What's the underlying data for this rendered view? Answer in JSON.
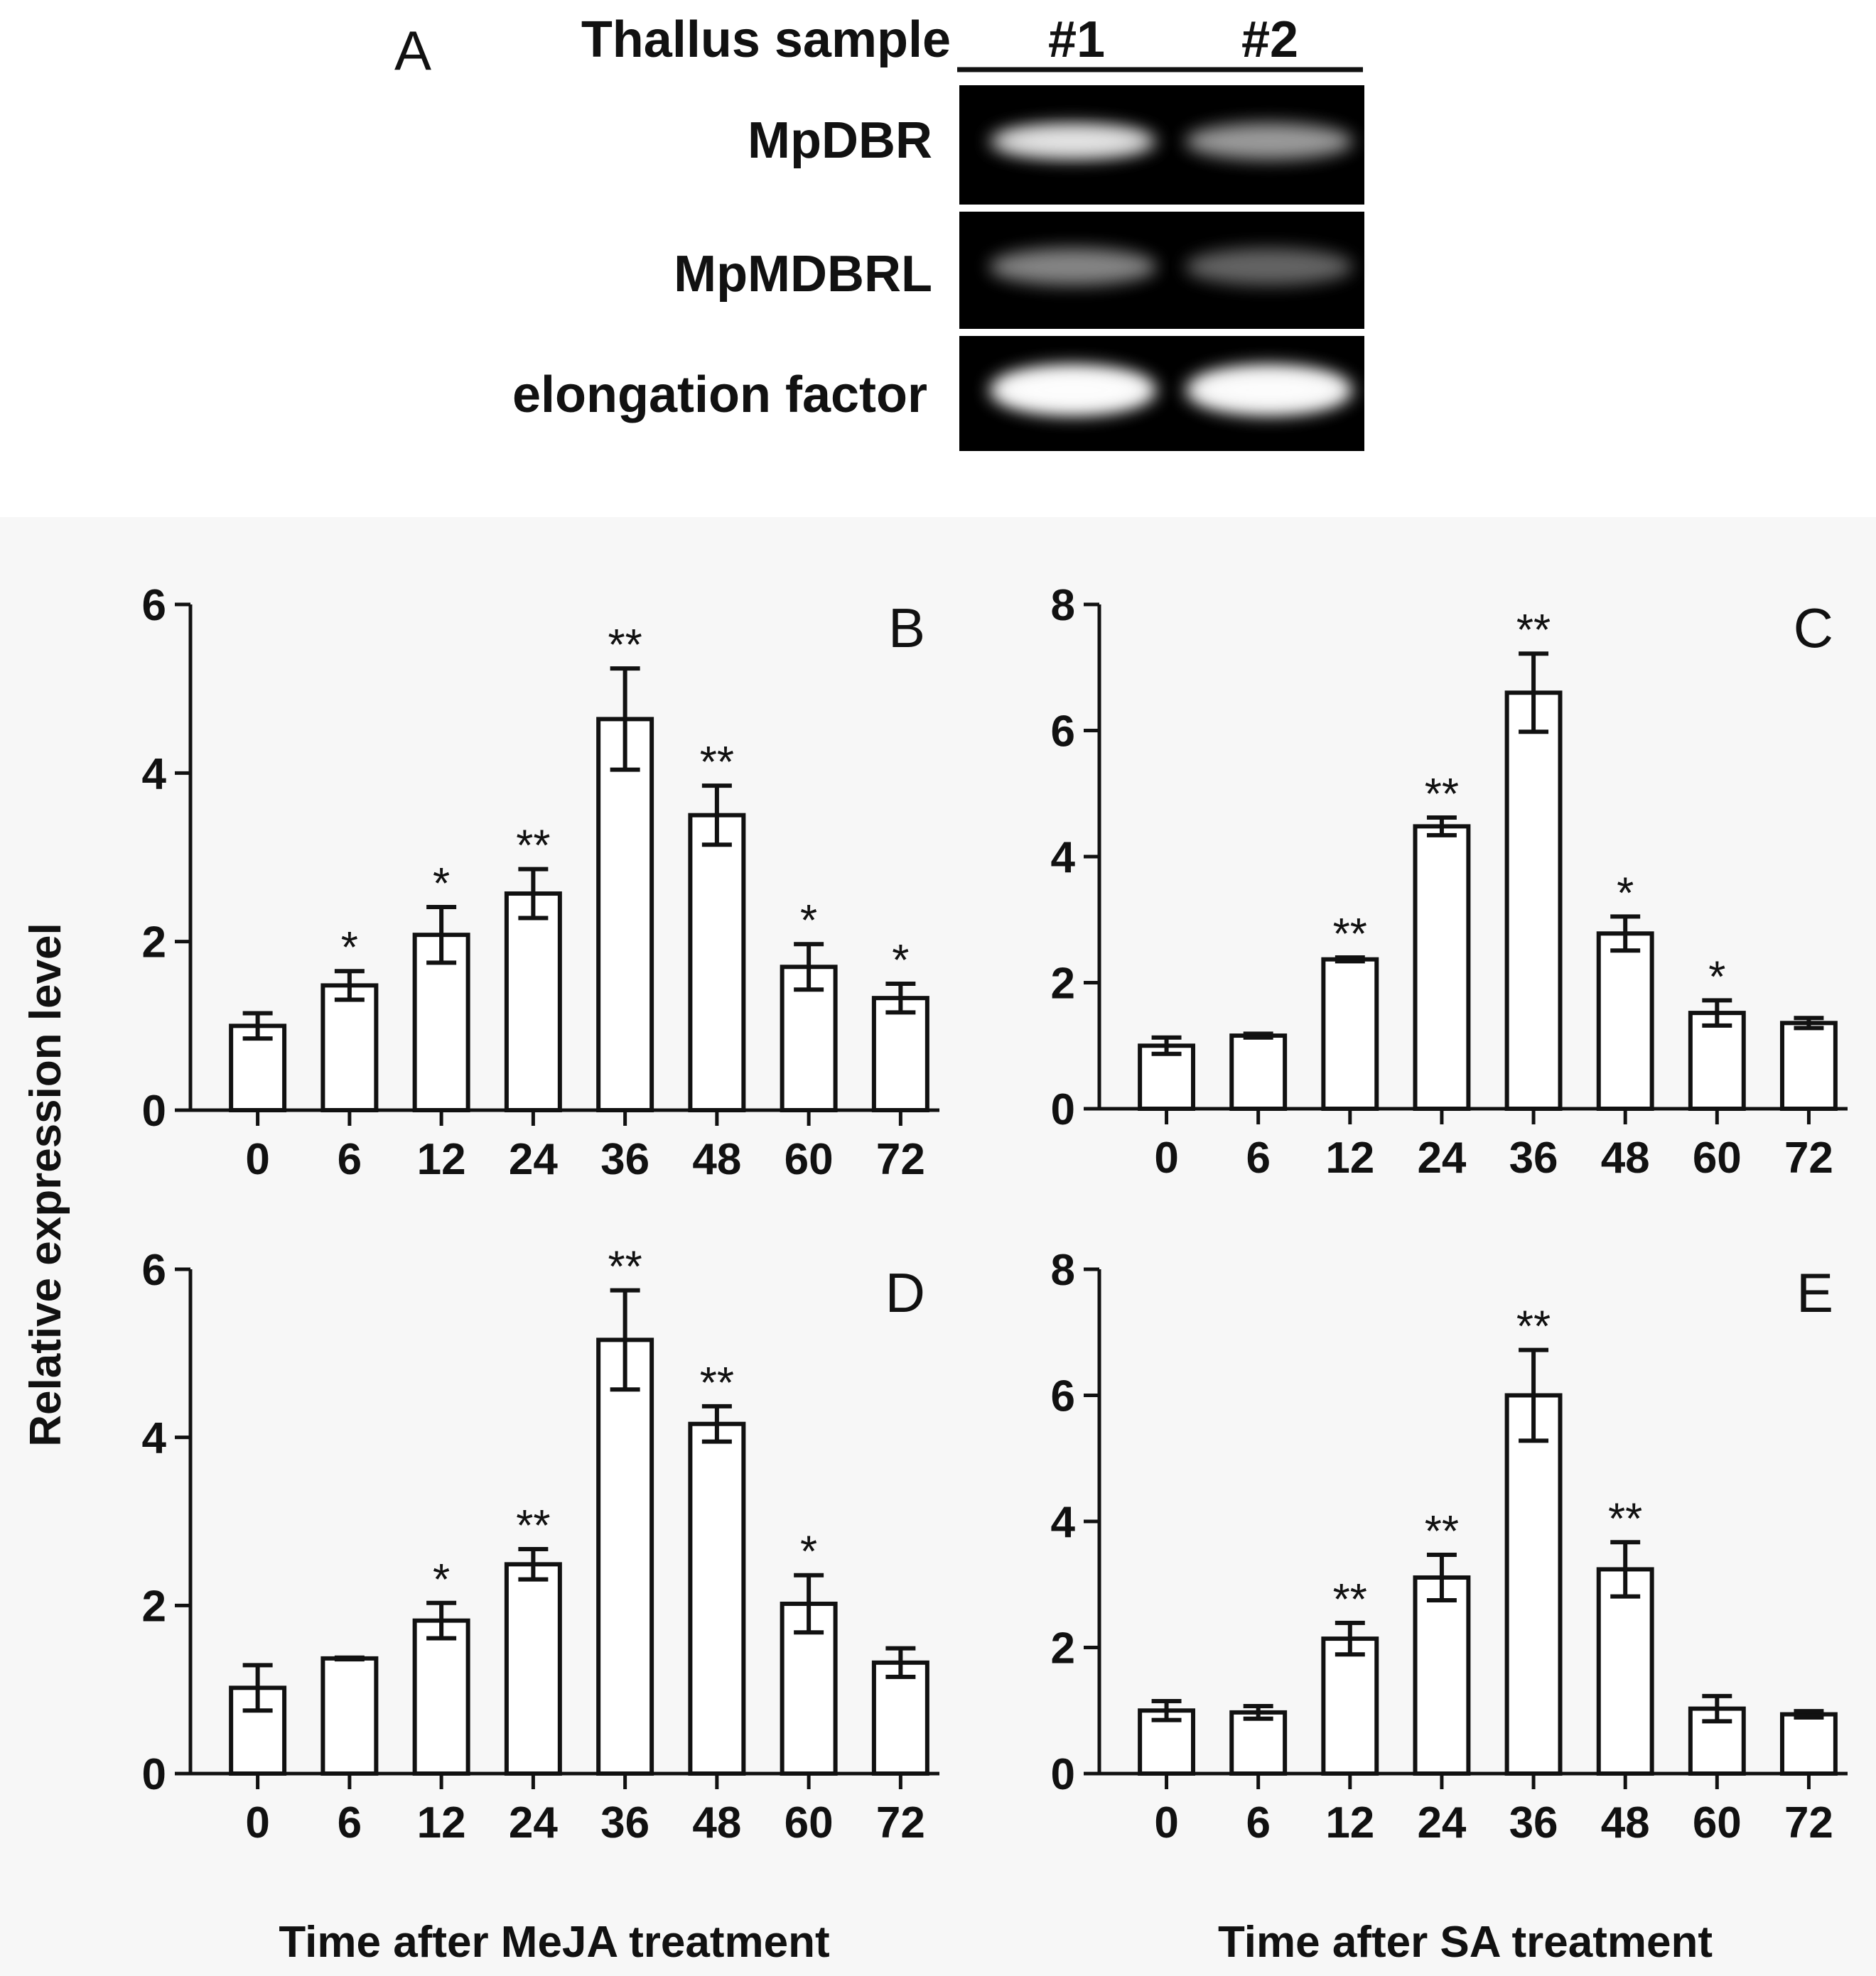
{
  "figure_a": {
    "panel_letter": "A",
    "header_label": "Thallus sample",
    "lanes": [
      "#1",
      "#2"
    ],
    "rows": [
      {
        "label": "MpDBR",
        "intensity": [
          0.72,
          0.5
        ]
      },
      {
        "label": "MpMDBRL",
        "intensity": [
          0.38,
          0.2
        ]
      },
      {
        "label": "elongation factor",
        "intensity": [
          1.0,
          0.98
        ]
      }
    ]
  },
  "y_axis_label": "Relative expression level",
  "x_axis_labels": [
    "Time after MeJA treatment",
    "Time after SA treatment"
  ],
  "chart_data": [
    {
      "panel": "B",
      "type": "bar",
      "categories": [
        "0",
        "6",
        "12",
        "24",
        "36",
        "48",
        "60",
        "72"
      ],
      "values": [
        1.0,
        1.48,
        2.08,
        2.57,
        4.64,
        3.5,
        1.7,
        1.33
      ],
      "errors": [
        0.15,
        0.17,
        0.33,
        0.29,
        0.6,
        0.35,
        0.27,
        0.17
      ],
      "significance": [
        "",
        "*",
        "*",
        "**",
        "**",
        "**",
        "*",
        "*"
      ],
      "ylim": [
        0,
        6
      ],
      "yticks": [
        "0",
        "2",
        "4",
        "6"
      ]
    },
    {
      "panel": "C",
      "type": "bar",
      "categories": [
        "0",
        "6",
        "12",
        "24",
        "36",
        "48",
        "60",
        "72"
      ],
      "values": [
        1.0,
        1.16,
        2.37,
        4.48,
        6.6,
        2.78,
        1.52,
        1.36
      ],
      "errors": [
        0.13,
        0.03,
        0.03,
        0.14,
        0.62,
        0.27,
        0.2,
        0.08
      ],
      "significance": [
        "",
        "",
        "**",
        "**",
        "**",
        "*",
        "*",
        ""
      ],
      "ylim": [
        0,
        8
      ],
      "yticks": [
        "0",
        "2",
        "4",
        "6",
        "8"
      ]
    },
    {
      "panel": "D",
      "type": "bar",
      "categories": [
        "0",
        "6",
        "12",
        "24",
        "36",
        "48",
        "60",
        "72"
      ],
      "values": [
        1.02,
        1.37,
        1.82,
        2.49,
        5.16,
        4.16,
        2.02,
        1.32
      ],
      "errors": [
        0.27,
        0.01,
        0.21,
        0.18,
        0.59,
        0.21,
        0.34,
        0.17
      ],
      "significance": [
        "",
        "",
        "*",
        "**",
        "**",
        "**",
        "*",
        ""
      ],
      "ylim": [
        0,
        6
      ],
      "yticks": [
        "0",
        "2",
        "4",
        "6"
      ]
    },
    {
      "panel": "E",
      "type": "bar",
      "categories": [
        "0",
        "6",
        "12",
        "24",
        "36",
        "48",
        "60",
        "72"
      ],
      "values": [
        1.0,
        0.97,
        2.14,
        3.11,
        6.0,
        3.24,
        1.03,
        0.94
      ],
      "errors": [
        0.15,
        0.1,
        0.25,
        0.36,
        0.72,
        0.43,
        0.2,
        0.05
      ],
      "significance": [
        "",
        "",
        "**",
        "**",
        "**",
        "**",
        "",
        ""
      ],
      "ylim": [
        0,
        8
      ],
      "yticks": [
        "0",
        "2",
        "4",
        "6",
        "8"
      ]
    }
  ]
}
